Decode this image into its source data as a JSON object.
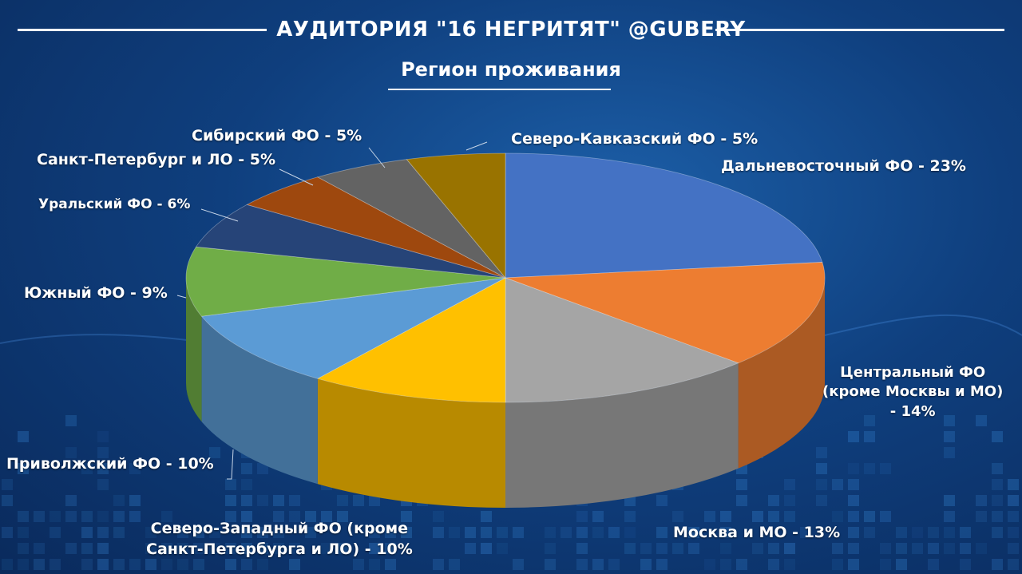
{
  "header": {
    "title": "АУДИТОРИЯ \"16 НЕГРИТЯТ\"  @GUBERY",
    "subtitle": "Регион проживания"
  },
  "chart_data": {
    "type": "pie",
    "slices": [
      {
        "name": "Дальневосточный ФО",
        "value": 23,
        "label": "Дальневосточный ФО - 23%",
        "color": "#4472c4"
      },
      {
        "name": "Центральный ФО (кроме Москвы и МО)",
        "value": 14,
        "label_lines": [
          "Центральный ФО",
          "(кроме Москвы и МО)",
          "- 14%"
        ],
        "color": "#ed7d31"
      },
      {
        "name": "Москва и МО",
        "value": 13,
        "label": "Москва и МО - 13%",
        "color": "#a5a5a5"
      },
      {
        "name": "Северо-Западный ФО (кроме Санкт-Петербурга и ЛО)",
        "value": 10,
        "label_lines": [
          "Северо-Западный ФО (кроме",
          "Санкт-Петербурга и ЛО) - 10%"
        ],
        "color": "#ffc000"
      },
      {
        "name": "Приволжский ФО",
        "value": 10,
        "label": "Приволжский ФО - 10%",
        "color": "#5b9bd5"
      },
      {
        "name": "Южный ФО",
        "value": 9,
        "label": "Южный ФО - 9%",
        "color": "#70ad47"
      },
      {
        "name": "Уральский ФО",
        "value": 6,
        "label": "Уральский ФО - 6%",
        "color": "#264478"
      },
      {
        "name": "Санкт-Петербург и ЛО",
        "value": 5,
        "label": "Санкт-Петербург  и ЛО - 5%",
        "color": "#9e480e"
      },
      {
        "name": "Сибирский ФО",
        "value": 5,
        "label": "Сибирский ФО - 5%",
        "color": "#636363"
      },
      {
        "name": "Северо-Кавказский ФО",
        "value": 5,
        "label": "Северо-Кавказский ФО - 5%",
        "color": "#997300"
      }
    ]
  }
}
